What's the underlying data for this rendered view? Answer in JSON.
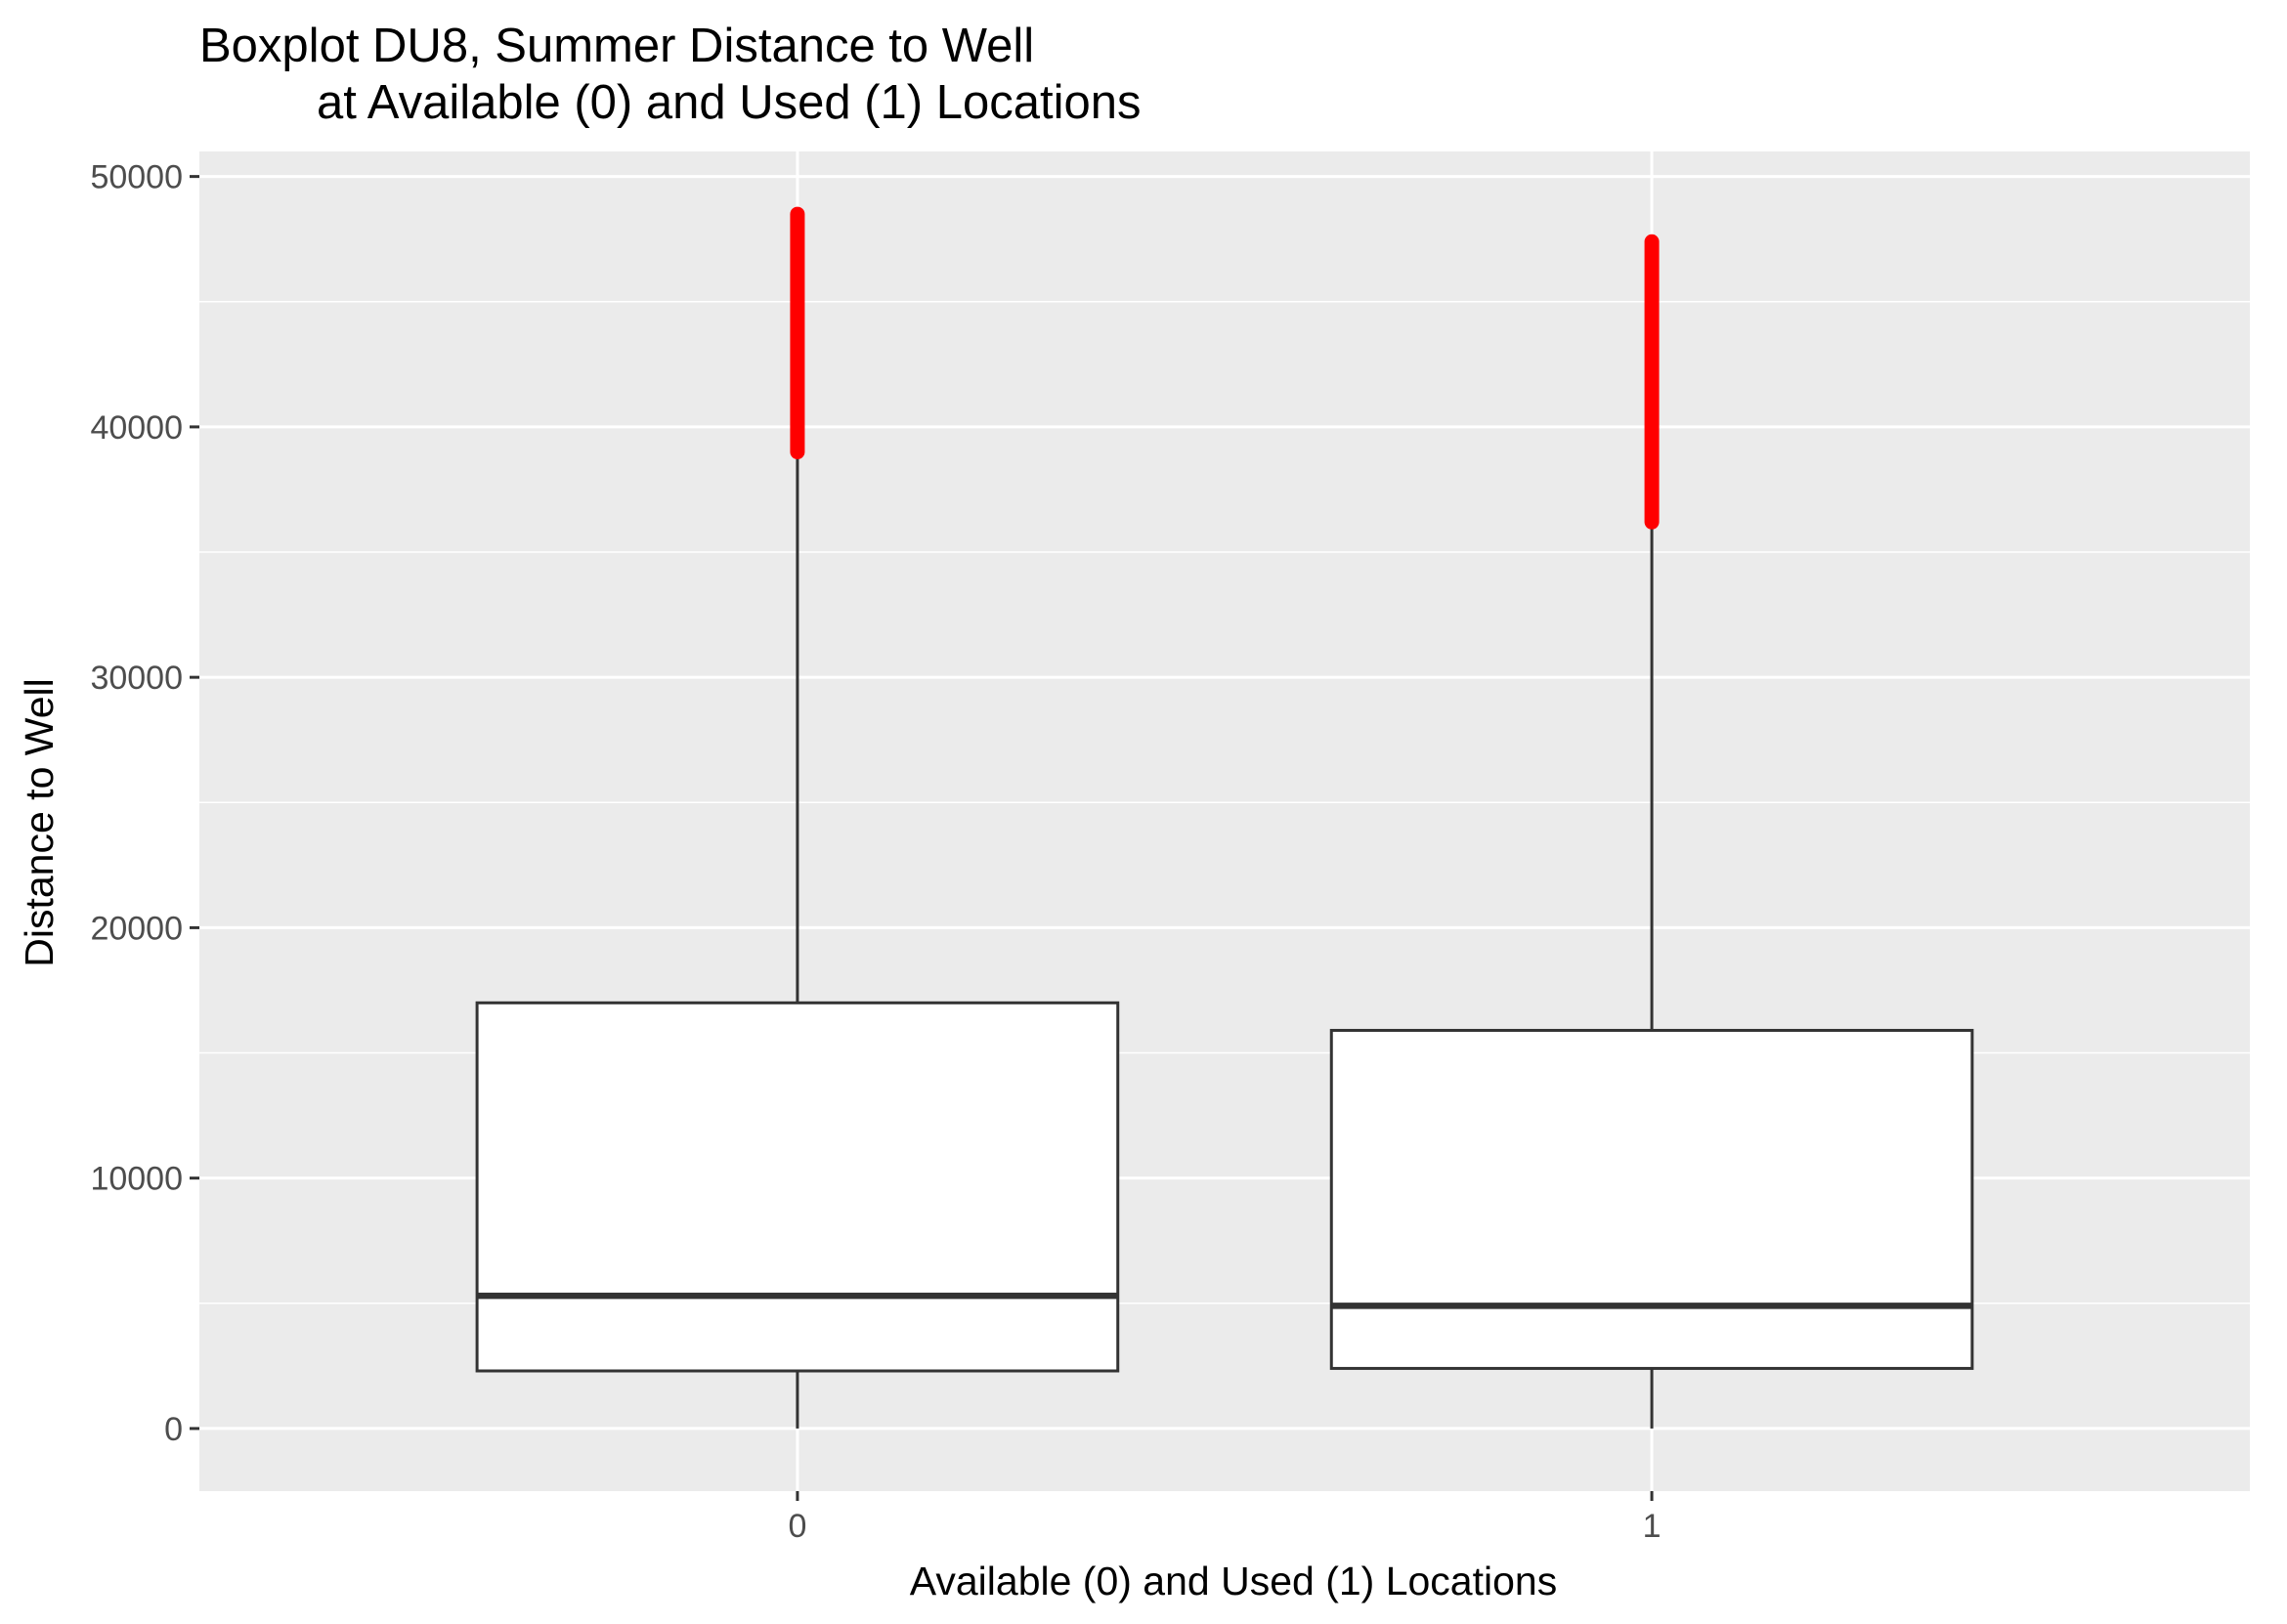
{
  "chart_data": {
    "type": "boxplot",
    "title": "Boxplot DU8, Summer Distance to Well",
    "subtitle": "at Available (0) and Used (1) Locations",
    "xlabel": "Available (0) and Used (1) Locations",
    "ylabel": "Distance to Well",
    "categories": [
      "0",
      "1"
    ],
    "yticks": [
      0,
      10000,
      20000,
      30000,
      40000,
      50000
    ],
    "ytick_labels": [
      "0",
      "10000",
      "20000",
      "30000",
      "40000",
      "50000"
    ],
    "ylim": [
      -2500,
      51000
    ],
    "grid": true,
    "panel_background": "#ebebeb",
    "grid_color": "#ffffff",
    "box_fill": "#ffffff",
    "box_line": "#333333",
    "outlier_color": "#ff0000",
    "boxes": [
      {
        "category": "0",
        "whisker_low": 0,
        "q1": 2300,
        "median": 5300,
        "q3": 17000,
        "whisker_high": 39000,
        "outliers_range": [
          39000,
          48500
        ]
      },
      {
        "category": "1",
        "whisker_low": 0,
        "q1": 2400,
        "median": 4900,
        "q3": 15900,
        "whisker_high": 36200,
        "outliers_range": [
          36200,
          47400
        ]
      }
    ]
  }
}
